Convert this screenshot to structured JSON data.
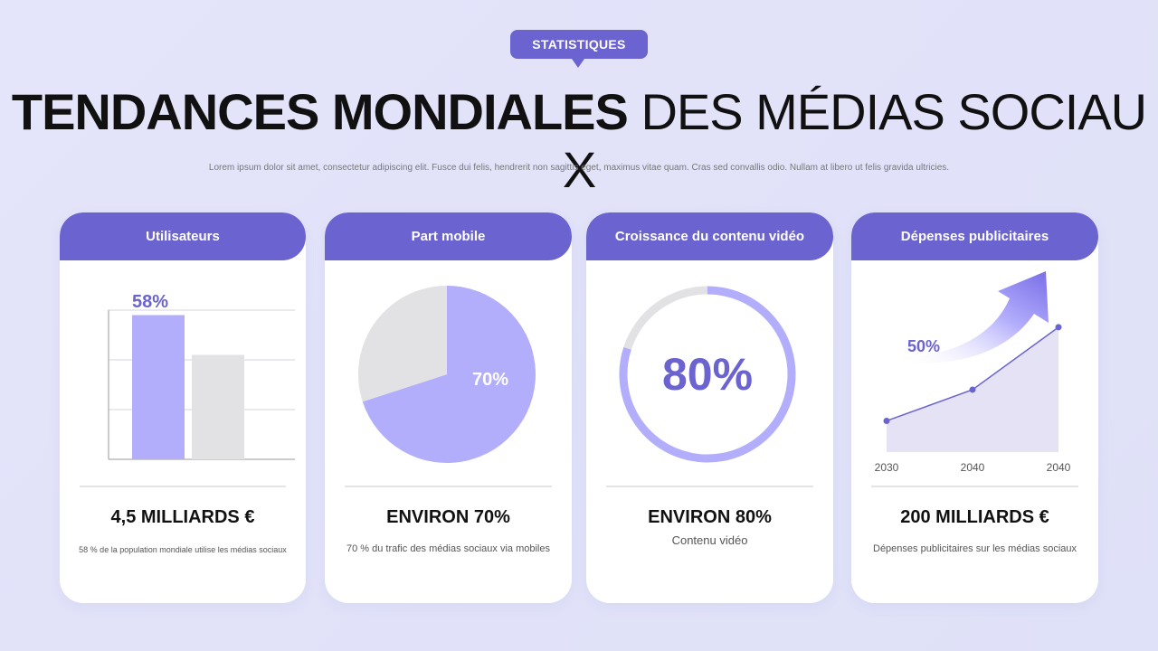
{
  "badge": "STATISTIQUES",
  "title": {
    "bold": "TENDANCES MONDIALES",
    "light": " DES MÉDIAS SOCIAUX"
  },
  "subtitle": "Lorem ipsum dolor sit amet, consectetur adipiscing elit. Fusce dui felis, hendrerit non sagittis eget, maximus vitae quam. Cras sed convallis odio. Nullam at libero ut felis gravida ultricies.",
  "colors": {
    "accent": "#6b63cf",
    "light_accent": "#b3aefc",
    "grey": "#e2e2e4",
    "area": "#e4e2f4"
  },
  "cards": [
    {
      "header": "Utilisateurs",
      "value": "4,5 MILLIARDS €",
      "description": "58 % de la population mondiale utilise les médias sociaux"
    },
    {
      "header": "Part mobile",
      "value": "ENVIRON 70%",
      "description": "70 % du trafic des médias sociaux via mobiles"
    },
    {
      "header": "Croissance du contenu vidéo",
      "value": "ENVIRON 80%",
      "description": "Contenu vidéo"
    },
    {
      "header": "Dépenses publicitaires",
      "value": "200 MILLIARDS €",
      "description": "Dépenses publicitaires sur les médias sociaux"
    }
  ],
  "chart_data": [
    {
      "type": "bar",
      "values": [
        58,
        42
      ],
      "label": "58%",
      "ylim": [
        0,
        60
      ],
      "grid": true
    },
    {
      "type": "pie",
      "values": [
        70,
        30
      ],
      "label": "70%"
    },
    {
      "type": "pie",
      "variant": "donut",
      "values": [
        80,
        20
      ],
      "label": "80%"
    },
    {
      "type": "area",
      "categories": [
        "2030",
        "2040",
        "2040"
      ],
      "values": [
        1,
        2,
        4
      ],
      "ylim": [
        0,
        4.2
      ],
      "label": "50%"
    }
  ]
}
